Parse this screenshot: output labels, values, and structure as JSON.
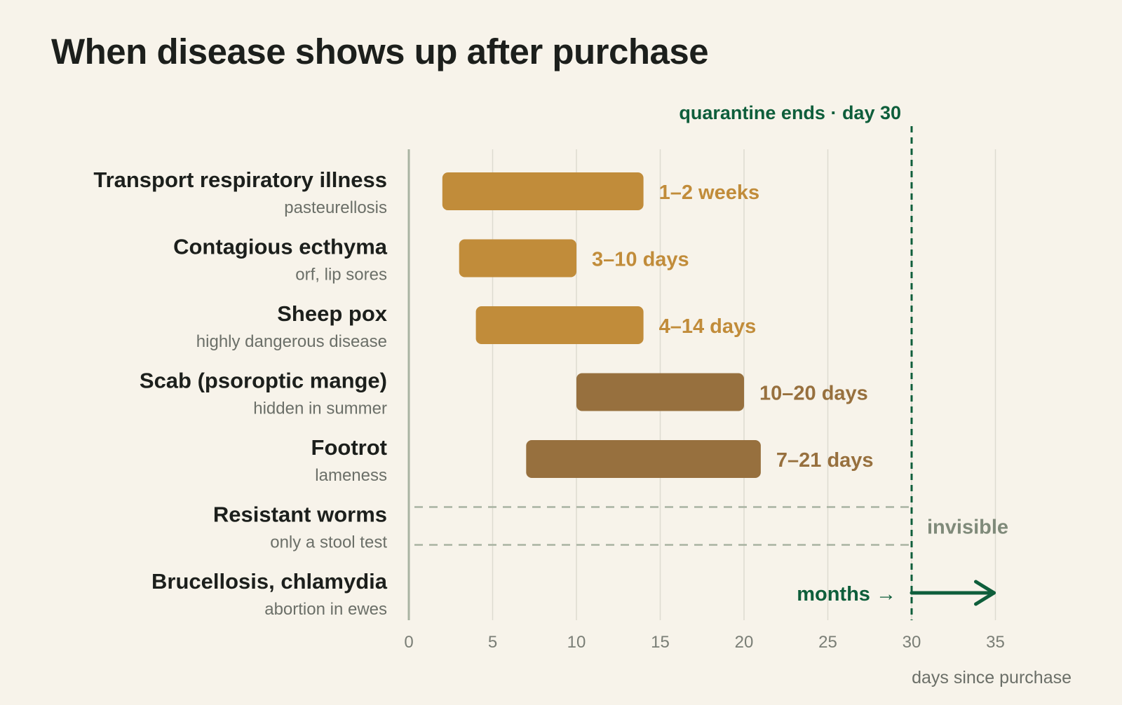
{
  "title": "When disease shows up after purchase",
  "chart_data": {
    "type": "bar",
    "subtype": "horizontal-range",
    "title": "When disease shows up after purchase",
    "xlabel": "days since purchase",
    "xlim": [
      0,
      35
    ],
    "xticks": [
      0,
      5,
      10,
      15,
      20,
      25,
      30,
      35
    ],
    "grid": true,
    "reference_line": {
      "x": 30,
      "label": "quarantine ends · day 30",
      "color": "#0e5e3b"
    },
    "colors": {
      "early": "#c18c3a",
      "late": "#97703e",
      "hidden": "#7f8a7a",
      "quarantine": "#0e5e3b"
    },
    "rows": [
      {
        "name": "Transport respiratory illness",
        "sub": "pasteurellosis",
        "start": 2,
        "end": 14,
        "label": "1–2 weeks",
        "style": "early"
      },
      {
        "name": "Contagious ecthyma",
        "sub": "orf, lip sores",
        "start": 3,
        "end": 10,
        "label": "3–10 days",
        "style": "early"
      },
      {
        "name": "Sheep pox",
        "sub": "highly dangerous disease",
        "start": 4,
        "end": 14,
        "label": "4–14 days",
        "style": "early"
      },
      {
        "name": "Scab (psoroptic mange)",
        "sub": "hidden in summer",
        "start": 10,
        "end": 20,
        "label": "10–20 days",
        "style": "late"
      },
      {
        "name": "Footrot",
        "sub": "lameness",
        "start": 7,
        "end": 21,
        "label": "7–21 days",
        "style": "late"
      },
      {
        "name": "Resistant worms",
        "sub": "only a stool test",
        "start": 0,
        "end": 30,
        "label": "invisible",
        "style": "hidden"
      },
      {
        "name": "Brucellosis, chlamydia",
        "sub": "abortion in ewes",
        "start": 30,
        "end": 35,
        "label": "months →",
        "style": "arrow"
      }
    ]
  }
}
